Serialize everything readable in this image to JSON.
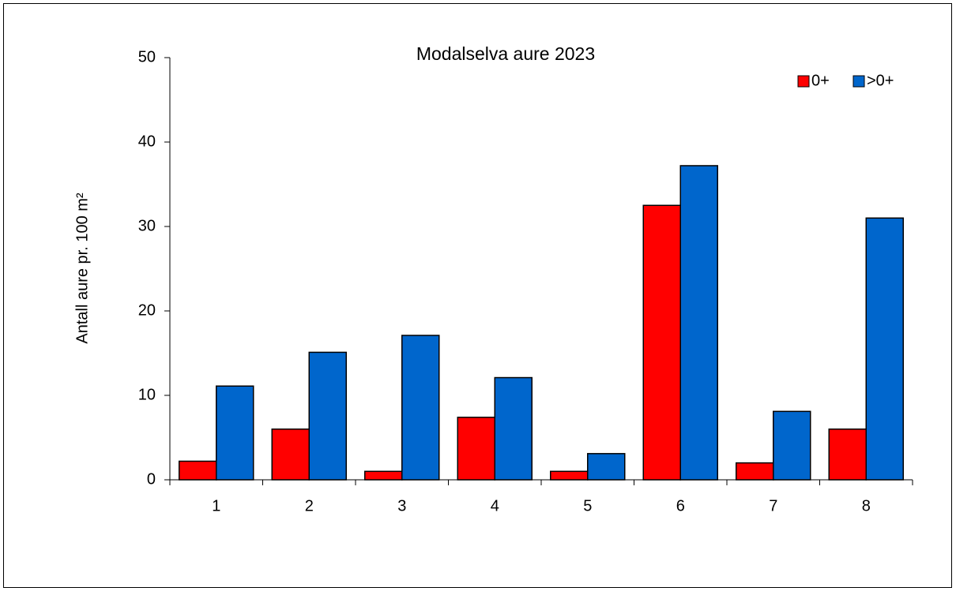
{
  "chart_data": {
    "type": "bar",
    "title": "Modalselva aure 2023",
    "y_label": "Antall aure pr. 100 m²",
    "categories": [
      "1",
      "2",
      "3",
      "4",
      "5",
      "6",
      "7",
      "8"
    ],
    "series": [
      {
        "name": "0+",
        "color": "#ff0000",
        "values": [
          2.2,
          6.0,
          1.0,
          7.4,
          1.0,
          32.5,
          2.0,
          6.0
        ]
      },
      {
        "name": ">0+",
        "color": "#0066cc",
        "values": [
          11.1,
          15.1,
          17.1,
          12.1,
          3.1,
          37.2,
          8.1,
          31.0
        ]
      }
    ],
    "ylim": [
      0,
      50
    ],
    "yticks": [
      0,
      10,
      20,
      30,
      40,
      50
    ],
    "grid": false,
    "legend": "top-right"
  }
}
